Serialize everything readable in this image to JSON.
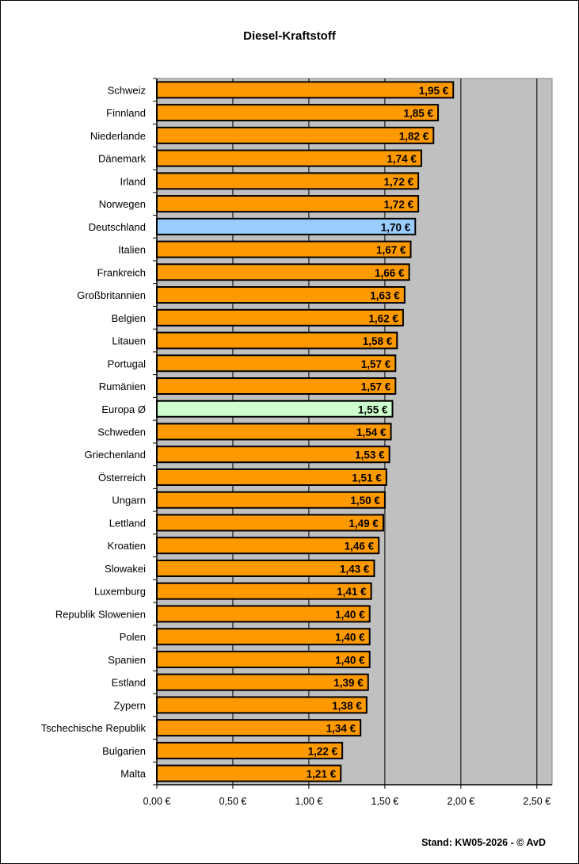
{
  "chart_data": {
    "type": "bar",
    "orientation": "horizontal",
    "title": "Diesel-Kraftstoff",
    "xlabel": "",
    "ylabel": "",
    "xlim": [
      0,
      2.6
    ],
    "x_ticks": [
      "0,00 €",
      "0,50 €",
      "1,00 €",
      "1,50 €",
      "2,00 €",
      "2,50 €"
    ],
    "x_tick_values": [
      0,
      0.5,
      1.0,
      1.5,
      2.0,
      2.5
    ],
    "grid": true,
    "legend": "none",
    "categories": [
      "Schweiz",
      "Finnland",
      "Niederlande",
      "Dänemark",
      "Irland",
      "Norwegen",
      "Deutschland",
      "Italien",
      "Frankreich",
      "Großbritannien",
      "Belgien",
      "Litauen",
      "Portugal",
      "Rumänien",
      "Europa Ø",
      "Schweden",
      "Griechenland",
      "Österreich",
      "Ungarn",
      "Lettland",
      "Kroatien",
      "Slowakei",
      "Luxemburg",
      "Republik Slowenien",
      "Polen",
      "Spanien",
      "Estland",
      "Zypern",
      "Tschechische Republik",
      "Bulgarien",
      "Malta"
    ],
    "values": [
      1.95,
      1.85,
      1.82,
      1.74,
      1.72,
      1.72,
      1.7,
      1.67,
      1.66,
      1.63,
      1.62,
      1.58,
      1.57,
      1.57,
      1.55,
      1.54,
      1.53,
      1.51,
      1.5,
      1.49,
      1.46,
      1.43,
      1.41,
      1.4,
      1.4,
      1.4,
      1.39,
      1.38,
      1.34,
      1.22,
      1.21
    ],
    "value_labels": [
      "1,95 €",
      "1,85 €",
      "1,82 €",
      "1,74 €",
      "1,72 €",
      "1,72 €",
      "1,70 €",
      "1,67 €",
      "1,66 €",
      "1,63 €",
      "1,62 €",
      "1,58 €",
      "1,57 €",
      "1,57 €",
      "1,55 €",
      "1,54 €",
      "1,53 €",
      "1,51 €",
      "1,50 €",
      "1,49 €",
      "1,46 €",
      "1,43 €",
      "1,41 €",
      "1,40 €",
      "1,40 €",
      "1,40 €",
      "1,39 €",
      "1,38 €",
      "1,34 €",
      "1,22 €",
      "1,21 €"
    ],
    "colors": {
      "default": "#ff9900",
      "Deutschland": "#99ccff",
      "Europa Ø": "#ccffcc",
      "plot_background": "#c0c0c0"
    }
  },
  "footer": "Stand: KW05-2026 - © AvD"
}
